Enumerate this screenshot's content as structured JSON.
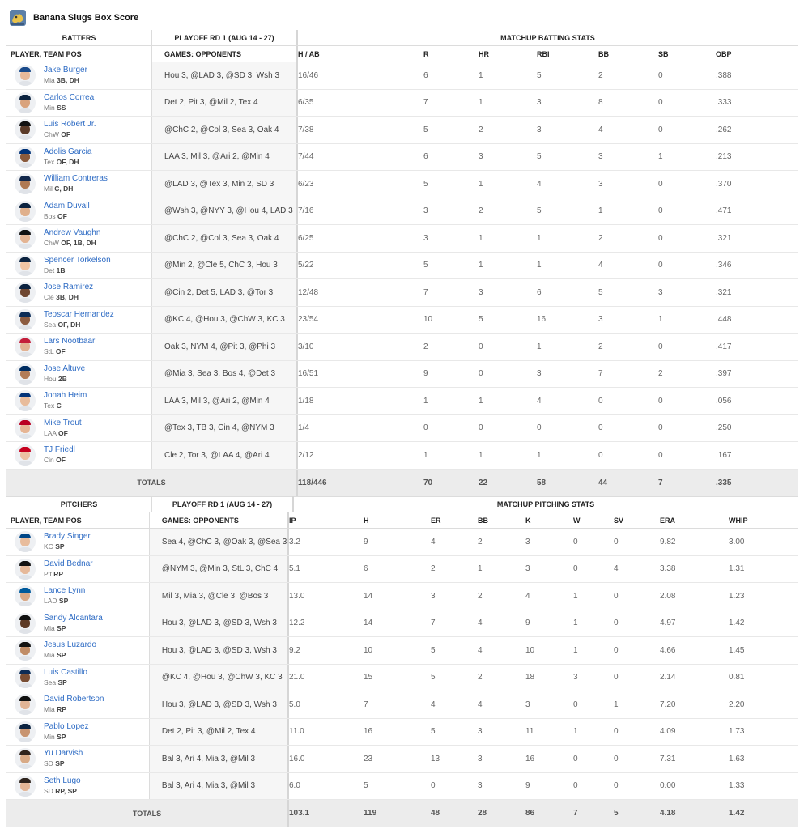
{
  "title": "Banana Slugs Box Score",
  "batting": {
    "group_player": "BATTERS",
    "group_games": "PLAYOFF RD 1 (AUG 14 - 27)",
    "group_stats": "MATCHUP BATTING STATS",
    "col_player": "PLAYER, TEAM POS",
    "col_games": "GAMES: OPPONENTS",
    "stat_headers": [
      "H / AB",
      "R",
      "HR",
      "RBI",
      "BB",
      "SB",
      "OBP"
    ],
    "rows": [
      {
        "name": "Jake Burger",
        "team": "Mia",
        "pos": "3B, DH",
        "games": "Hou 3, @LAD 3, @SD 3, Wsh 3",
        "stats": [
          "16/46",
          "6",
          "1",
          "5",
          "2",
          "0",
          ".388"
        ],
        "cap": "#1a4a8a",
        "skin": "#e7b99a"
      },
      {
        "name": "Carlos Correa",
        "team": "Min",
        "pos": "SS",
        "games": "Det 2, Pit 3, @Mil 2, Tex 4",
        "stats": [
          "6/35",
          "7",
          "1",
          "3",
          "8",
          "0",
          ".333"
        ],
        "cap": "#0c2340",
        "skin": "#d9a37d"
      },
      {
        "name": "Luis Robert Jr.",
        "team": "ChW",
        "pos": "OF",
        "games": "@ChC 2, @Col 3, Sea 3, Oak 4",
        "stats": [
          "7/38",
          "5",
          "2",
          "3",
          "4",
          "0",
          ".262"
        ],
        "cap": "#111111",
        "skin": "#5a3a28"
      },
      {
        "name": "Adolis Garcia",
        "team": "Tex",
        "pos": "OF, DH",
        "games": "LAA 3, Mil 3, @Ari 2, @Min 4",
        "stats": [
          "7/44",
          "6",
          "3",
          "5",
          "3",
          "1",
          ".213"
        ],
        "cap": "#003278",
        "skin": "#8a5a3c"
      },
      {
        "name": "William Contreras",
        "team": "Mil",
        "pos": "C, DH",
        "games": "@LAD 3, @Tex 3, Min 2, SD 3",
        "stats": [
          "6/23",
          "5",
          "1",
          "4",
          "3",
          "0",
          ".370"
        ],
        "cap": "#12284b",
        "skin": "#b07a54"
      },
      {
        "name": "Adam Duvall",
        "team": "Bos",
        "pos": "OF",
        "games": "@Wsh 3, @NYY 3, @Hou 4, LAD 3",
        "stats": [
          "7/16",
          "3",
          "2",
          "5",
          "1",
          "0",
          ".471"
        ],
        "cap": "#0c2340",
        "skin": "#e0b08c"
      },
      {
        "name": "Andrew Vaughn",
        "team": "ChW",
        "pos": "OF, 1B, DH",
        "games": "@ChC 2, @Col 3, Sea 3, Oak 4",
        "stats": [
          "6/25",
          "3",
          "1",
          "1",
          "2",
          "0",
          ".321"
        ],
        "cap": "#111111",
        "skin": "#e4b493"
      },
      {
        "name": "Spencer Torkelson",
        "team": "Det",
        "pos": "1B",
        "games": "@Min 2, @Cle 5, ChC 3, Hou 3",
        "stats": [
          "5/22",
          "5",
          "1",
          "1",
          "4",
          "0",
          ".346"
        ],
        "cap": "#0c2340",
        "skin": "#efc4a4"
      },
      {
        "name": "Jose Ramirez",
        "team": "Cle",
        "pos": "3B, DH",
        "games": "@Cin 2, Det 5, LAD 3, @Tor 3",
        "stats": [
          "12/48",
          "7",
          "3",
          "6",
          "5",
          "3",
          ".321"
        ],
        "cap": "#0c2340",
        "skin": "#6e4630"
      },
      {
        "name": "Teoscar Hernandez",
        "team": "Sea",
        "pos": "OF, DH",
        "games": "@KC 4, @Hou 3, @ChW 3, KC 3",
        "stats": [
          "23/54",
          "10",
          "5",
          "16",
          "3",
          "1",
          ".448"
        ],
        "cap": "#0c2c56",
        "skin": "#8c5c40"
      },
      {
        "name": "Lars Nootbaar",
        "team": "StL",
        "pos": "OF",
        "games": "Oak 3, NYM 4, @Pit 3, @Phi 3",
        "stats": [
          "3/10",
          "2",
          "0",
          "1",
          "2",
          "0",
          ".417"
        ],
        "cap": "#c41e3a",
        "skin": "#e2b293"
      },
      {
        "name": "Jose Altuve",
        "team": "Hou",
        "pos": "2B",
        "games": "@Mia 3, Sea 3, Bos 4, @Det 3",
        "stats": [
          "16/51",
          "9",
          "0",
          "3",
          "7",
          "2",
          ".397"
        ],
        "cap": "#002d62",
        "skin": "#b27c58"
      },
      {
        "name": "Jonah Heim",
        "team": "Tex",
        "pos": "C",
        "games": "LAA 3, Mil 3, @Ari 2, @Min 4",
        "stats": [
          "1/18",
          "1",
          "1",
          "4",
          "0",
          "0",
          ".056"
        ],
        "cap": "#003278",
        "skin": "#e8bc9c"
      },
      {
        "name": "Mike Trout",
        "team": "LAA",
        "pos": "OF",
        "games": "@Tex 3, TB 3, Cin 4, @NYM 3",
        "stats": [
          "1/4",
          "0",
          "0",
          "0",
          "0",
          "0",
          ".250"
        ],
        "cap": "#ba0021",
        "skin": "#e6b594"
      },
      {
        "name": "TJ Friedl",
        "team": "Cin",
        "pos": "OF",
        "games": "Cle 2, Tor 3, @LAA 4, @Ari 4",
        "stats": [
          "2/12",
          "1",
          "1",
          "1",
          "0",
          "0",
          ".167"
        ],
        "cap": "#c6011f",
        "skin": "#ecc2a2"
      }
    ],
    "totals_label": "TOTALS",
    "totals": [
      "118/446",
      "70",
      "22",
      "58",
      "44",
      "7",
      ".335"
    ]
  },
  "pitching": {
    "group_player": "PITCHERS",
    "group_games": "PLAYOFF RD 1 (AUG 14 - 27)",
    "group_stats": "MATCHUP PITCHING STATS",
    "col_player": "PLAYER, TEAM POS",
    "col_games": "GAMES: OPPONENTS",
    "stat_headers": [
      "IP",
      "H",
      "ER",
      "BB",
      "K",
      "W",
      "SV",
      "ERA",
      "WHIP"
    ],
    "rows": [
      {
        "name": "Brady Singer",
        "team": "KC",
        "pos": "SP",
        "games": "Sea 4, @ChC 3, @Oak 3, @Sea 3",
        "stats": [
          "3.2",
          "9",
          "4",
          "2",
          "3",
          "0",
          "0",
          "9.82",
          "3.00"
        ],
        "cap": "#004687",
        "skin": "#e8bc9c"
      },
      {
        "name": "David Bednar",
        "team": "Pit",
        "pos": "RP",
        "games": "@NYM 3, @Min 3, StL 3, ChC 4",
        "stats": [
          "5.1",
          "6",
          "2",
          "1",
          "3",
          "0",
          "4",
          "3.38",
          "1.31"
        ],
        "cap": "#111111",
        "skin": "#e6b99a"
      },
      {
        "name": "Lance Lynn",
        "team": "LAD",
        "pos": "SP",
        "games": "Mil 3, Mia 3, @Cle 3, @Bos 3",
        "stats": [
          "13.0",
          "14",
          "3",
          "2",
          "4",
          "1",
          "0",
          "2.08",
          "1.23"
        ],
        "cap": "#005a9c",
        "skin": "#d9a886"
      },
      {
        "name": "Sandy Alcantara",
        "team": "Mia",
        "pos": "SP",
        "games": "Hou 3, @LAD 3, @SD 3, Wsh 3",
        "stats": [
          "12.2",
          "14",
          "7",
          "4",
          "9",
          "1",
          "0",
          "4.97",
          "1.42"
        ],
        "cap": "#111111",
        "skin": "#5e3b26"
      },
      {
        "name": "Jesus Luzardo",
        "team": "Mia",
        "pos": "SP",
        "games": "Hou 3, @LAD 3, @SD 3, Wsh 3",
        "stats": [
          "9.2",
          "10",
          "5",
          "4",
          "10",
          "1",
          "0",
          "4.66",
          "1.45"
        ],
        "cap": "#111111",
        "skin": "#c08c66"
      },
      {
        "name": "Luis Castillo",
        "team": "Sea",
        "pos": "SP",
        "games": "@KC 4, @Hou 3, @ChW 3, KC 3",
        "stats": [
          "21.0",
          "15",
          "5",
          "2",
          "18",
          "3",
          "0",
          "2.14",
          "0.81"
        ],
        "cap": "#0c2c56",
        "skin": "#7a4e34"
      },
      {
        "name": "David Robertson",
        "team": "Mia",
        "pos": "RP",
        "games": "Hou 3, @LAD 3, @SD 3, Wsh 3",
        "stats": [
          "5.0",
          "7",
          "4",
          "4",
          "3",
          "0",
          "1",
          "7.20",
          "2.20"
        ],
        "cap": "#111111",
        "skin": "#e2b495"
      },
      {
        "name": "Pablo Lopez",
        "team": "Min",
        "pos": "SP",
        "games": "Det 2, Pit 3, @Mil 2, Tex 4",
        "stats": [
          "11.0",
          "16",
          "5",
          "3",
          "11",
          "1",
          "0",
          "4.09",
          "1.73"
        ],
        "cap": "#0c2340",
        "skin": "#c89470"
      },
      {
        "name": "Yu Darvish",
        "team": "SD",
        "pos": "SP",
        "games": "Bal 3, Ari 4, Mia 3, @Mil 3",
        "stats": [
          "16.0",
          "23",
          "13",
          "3",
          "16",
          "0",
          "0",
          "7.31",
          "1.63"
        ],
        "cap": "#2f241d",
        "skin": "#d8aa86"
      },
      {
        "name": "Seth Lugo",
        "team": "SD",
        "pos": "RP, SP",
        "games": "Bal 3, Ari 4, Mia 3, @Mil 3",
        "stats": [
          "6.0",
          "5",
          "0",
          "3",
          "9",
          "0",
          "0",
          "0.00",
          "1.33"
        ],
        "cap": "#2f241d",
        "skin": "#e4b696"
      }
    ],
    "totals_label": "TOTALS",
    "totals": [
      "103.1",
      "119",
      "48",
      "28",
      "86",
      "7",
      "5",
      "4.18",
      "1.42"
    ]
  }
}
